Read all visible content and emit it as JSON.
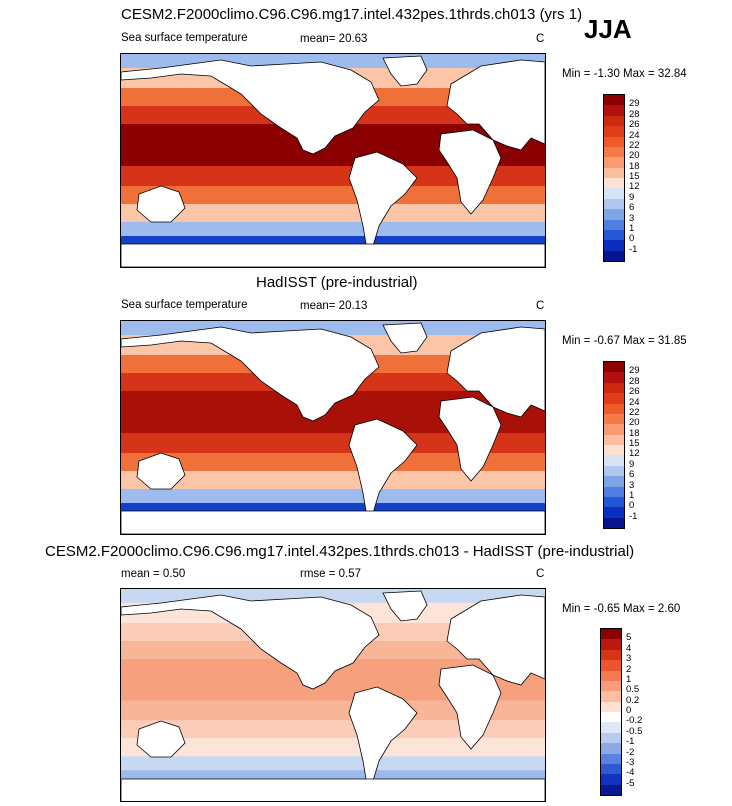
{
  "season": "JJA",
  "panels": [
    {
      "title": "CESM2.F2000climo.C96.C96.mg17.intel.432pes.1thrds.ch013 (yrs 1)",
      "variable": "Sea surface temperature",
      "stat1": "mean=  20.63",
      "stat2": "",
      "units": "C",
      "minmax": "Min =  -1.30 Max =  32.84",
      "colorbar": {
        "labels": [
          "29",
          "28",
          "26",
          "24",
          "22",
          "20",
          "18",
          "15",
          "12",
          "9",
          "6",
          "3",
          "1",
          "0",
          "-1"
        ],
        "colors": [
          "#8b0000",
          "#b01010",
          "#cc2a10",
          "#e03c18",
          "#ee5a28",
          "#f47a48",
          "#f89a72",
          "#fbbfa0",
          "#fde2d2",
          "#d6e3f5",
          "#b0c8ee",
          "#7ea6e6",
          "#4f7fe0",
          "#2556d6",
          "#0a2fbf",
          "#06158f"
        ]
      },
      "map_colors": {
        "hot": "#8b0000",
        "warm": "#d63419",
        "mild": "#f0703a",
        "cool": "#fbc5a8",
        "cold": "#9dbbec",
        "frozen": "#1540c8"
      }
    },
    {
      "title": "HadISST (pre-industrial)",
      "variable": "Sea surface temperature",
      "stat1": "mean=  20.13",
      "stat2": "",
      "units": "C",
      "minmax": "Min =  -0.67 Max =  31.85",
      "colorbar": {
        "labels": [
          "29",
          "28",
          "26",
          "24",
          "22",
          "20",
          "18",
          "15",
          "12",
          "9",
          "6",
          "3",
          "1",
          "0",
          "-1"
        ],
        "colors": [
          "#8b0000",
          "#b01010",
          "#cc2a10",
          "#e03c18",
          "#ee5a28",
          "#f47a48",
          "#f89a72",
          "#fbbfa0",
          "#fde2d2",
          "#d6e3f5",
          "#b0c8ee",
          "#7ea6e6",
          "#4f7fe0",
          "#2556d6",
          "#0a2fbf",
          "#06158f"
        ]
      },
      "map_colors": {
        "hot": "#a81008",
        "warm": "#d63419",
        "mild": "#f0703a",
        "cool": "#fbc5a8",
        "cold": "#9dbbec",
        "frozen": "#1540c8"
      }
    },
    {
      "title": "CESM2.F2000climo.C96.C96.mg17.intel.432pes.1thrds.ch013 - HadISST (pre-industrial)",
      "variable": "",
      "stat1": "mean =   0.50",
      "stat2": "rmse =   0.57",
      "units": "C",
      "minmax": "Min =  -0.65 Max =   2.60",
      "colorbar": {
        "labels": [
          "5",
          "4",
          "3",
          "2",
          "1",
          "0.5",
          "0.2",
          "0",
          "-0.2",
          "-0.5",
          "-1",
          "-2",
          "-3",
          "-4",
          "-5"
        ],
        "colors": [
          "#8b0000",
          "#b81a10",
          "#d8341a",
          "#ea5530",
          "#f47a52",
          "#f89c7c",
          "#fbbda4",
          "#fde0d0",
          "#ffffff",
          "#dfe8f7",
          "#b7cbef",
          "#8aa9e6",
          "#5a83dd",
          "#2f5ad2",
          "#1233c0",
          "#08188f"
        ]
      },
      "map_colors": {
        "hot": "#f6a07e",
        "warm": "#f8b598",
        "mild": "#fbcdb8",
        "cool": "#fde4d8",
        "cold": "#c9d8f2",
        "frozen": "#9db8ea"
      }
    }
  ]
}
